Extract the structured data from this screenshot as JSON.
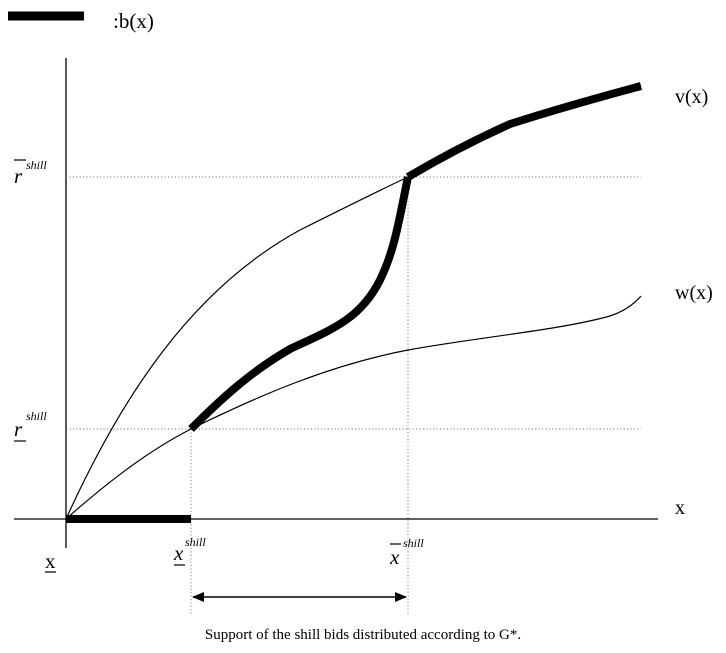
{
  "legend": {
    "label": ":b(x)"
  },
  "curves": {
    "v_label": "v(x)",
    "w_label": "w(x)"
  },
  "axes": {
    "x_axis_label": "x",
    "origin_label": "x"
  },
  "levels": {
    "r_upper_base": "r",
    "r_upper_sup": "shill",
    "r_lower_base": "r",
    "r_lower_sup": "shill"
  },
  "thresholds": {
    "x_lower_base": "x",
    "x_lower_sup": "shill",
    "x_upper_base": "x",
    "x_upper_sup": "shill"
  },
  "caption": "Support of the shill bids distributed according to G*."
}
